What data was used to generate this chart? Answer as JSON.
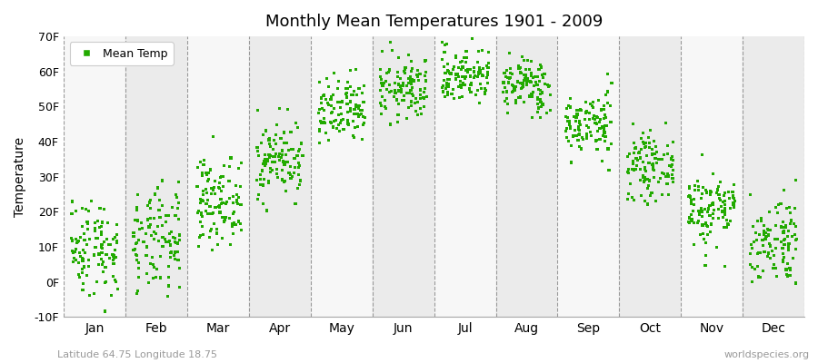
{
  "title": "Monthly Mean Temperatures 1901 - 2009",
  "ylabel": "Temperature",
  "xlabel_labels": [
    "Jan",
    "Feb",
    "Mar",
    "Apr",
    "May",
    "Jun",
    "Jul",
    "Aug",
    "Sep",
    "Oct",
    "Nov",
    "Dec"
  ],
  "footer_left": "Latitude 64.75 Longitude 18.75",
  "footer_right": "worldspecies.org",
  "legend_label": "Mean Temp",
  "dot_color": "#22AA00",
  "bg_color": "#FFFFFF",
  "plot_bg_color": "#FFFFFF",
  "band_color_odd": "#EBEBEB",
  "band_color_even": "#F7F7F7",
  "ylim": [
    -10,
    70
  ],
  "yticks": [
    -10,
    0,
    10,
    20,
    30,
    40,
    50,
    60,
    70
  ],
  "ytick_labels": [
    "-10F",
    "0F",
    "10F",
    "20F",
    "30F",
    "40F",
    "50F",
    "60F",
    "70F"
  ],
  "years": 109,
  "monthly_means_F": [
    10.0,
    11.0,
    23.0,
    35.0,
    48.0,
    55.0,
    59.0,
    56.0,
    45.0,
    33.0,
    21.0,
    12.0
  ],
  "monthly_stds_F": [
    7.0,
    7.5,
    6.0,
    5.5,
    5.0,
    4.5,
    4.0,
    4.0,
    4.5,
    4.5,
    5.5,
    6.5
  ]
}
